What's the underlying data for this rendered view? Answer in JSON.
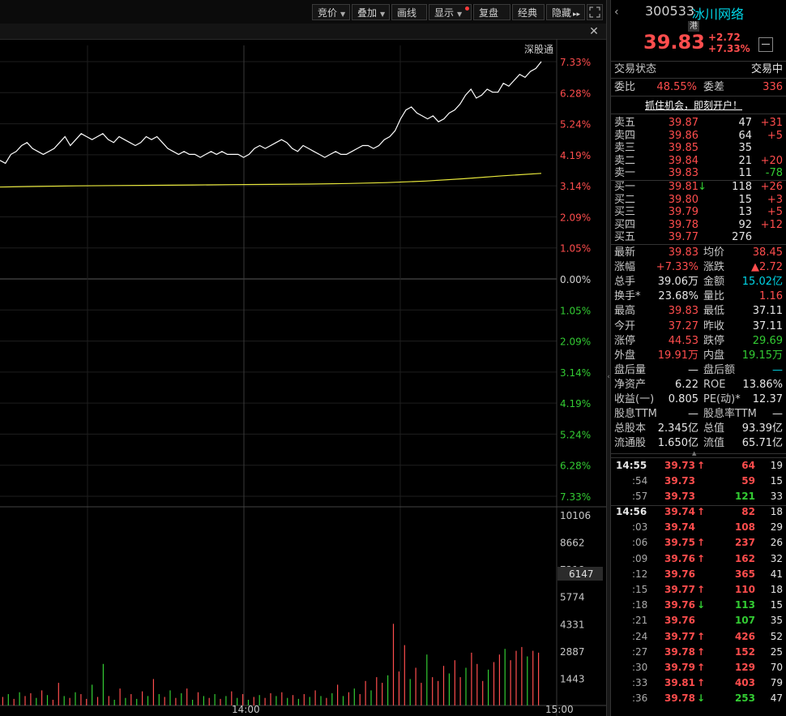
{
  "toolbar": {
    "buttons": [
      {
        "label": "竞价",
        "dropdown": true
      },
      {
        "label": "叠加",
        "dropdown": true
      },
      {
        "label": "画线",
        "dropdown": false
      },
      {
        "label": "显示",
        "dropdown": true
      },
      {
        "label": "复盘",
        "dropdown": false
      },
      {
        "label": "经典",
        "dropdown": false
      },
      {
        "label": "隐藏",
        "dropdown": false
      }
    ],
    "hide_arrows": "▸▸",
    "fullscreen_icon": "fullscreen-icon"
  },
  "chart_data": {
    "type": "line",
    "market_label": "深股通",
    "price_axis_labels": [
      "7.33%",
      "6.28%",
      "5.24%",
      "4.19%",
      "3.14%",
      "2.09%",
      "1.05%",
      "0.00%",
      "1.05%",
      "2.09%",
      "3.14%",
      "4.19%",
      "5.24%",
      "6.28%",
      "7.33%"
    ],
    "time_labels": [
      "14:00",
      "15:00"
    ],
    "volume_axis_labels": [
      "10106",
      "8662",
      "7218",
      "5774",
      "4331",
      "2887",
      "1443"
    ],
    "volume_marker": "6147",
    "price_series_pct": [
      4.0,
      3.9,
      4.2,
      4.3,
      4.5,
      4.6,
      4.4,
      4.3,
      4.2,
      4.3,
      4.4,
      4.6,
      4.8,
      4.5,
      4.7,
      4.9,
      4.8,
      4.7,
      4.8,
      4.9,
      4.7,
      4.6,
      4.8,
      4.7,
      4.6,
      4.5,
      4.6,
      4.8,
      4.7,
      4.8,
      4.6,
      4.4,
      4.3,
      4.2,
      4.3,
      4.2,
      4.2,
      4.1,
      4.2,
      4.3,
      4.2,
      4.3,
      4.2,
      4.2,
      4.2,
      4.1,
      4.2,
      4.4,
      4.5,
      4.4,
      4.5,
      4.6,
      4.7,
      4.6,
      4.4,
      4.3,
      4.5,
      4.4,
      4.3,
      4.2,
      4.1,
      4.2,
      4.3,
      4.2,
      4.2,
      4.3,
      4.4,
      4.5,
      4.5,
      4.4,
      4.5,
      4.7,
      4.8,
      5.0,
      5.4,
      5.7,
      5.8,
      5.6,
      5.5,
      5.4,
      5.5,
      5.3,
      5.4,
      5.6,
      5.7,
      5.9,
      6.2,
      6.4,
      6.1,
      6.2,
      6.4,
      6.3,
      6.3,
      6.6,
      6.5,
      6.7,
      6.9,
      6.8,
      7.0,
      7.1,
      7.33
    ],
    "avg_series_pct": [
      3.1,
      3.12,
      3.14,
      3.15,
      3.16,
      3.17,
      3.18,
      3.19,
      3.2,
      3.22,
      3.25,
      3.3,
      3.38,
      3.48,
      3.56
    ],
    "volume_bars": [
      {
        "v": 450,
        "c": "r"
      },
      {
        "v": 600,
        "c": "g"
      },
      {
        "v": 350,
        "c": "r"
      },
      {
        "v": 700,
        "c": "g"
      },
      {
        "v": 500,
        "c": "r"
      },
      {
        "v": 650,
        "c": "r"
      },
      {
        "v": 400,
        "c": "g"
      },
      {
        "v": 800,
        "c": "r"
      },
      {
        "v": 550,
        "c": "g"
      },
      {
        "v": 300,
        "c": "r"
      },
      {
        "v": 1200,
        "c": "r"
      },
      {
        "v": 500,
        "c": "g"
      },
      {
        "v": 400,
        "c": "r"
      },
      {
        "v": 700,
        "c": "g"
      },
      {
        "v": 600,
        "c": "r"
      },
      {
        "v": 350,
        "c": "r"
      },
      {
        "v": 1100,
        "c": "g"
      },
      {
        "v": 450,
        "c": "r"
      },
      {
        "v": 2200,
        "c": "g"
      },
      {
        "v": 500,
        "c": "r"
      },
      {
        "v": 300,
        "c": "g"
      },
      {
        "v": 900,
        "c": "r"
      },
      {
        "v": 400,
        "c": "g"
      },
      {
        "v": 600,
        "c": "r"
      },
      {
        "v": 350,
        "c": "g"
      },
      {
        "v": 750,
        "c": "r"
      },
      {
        "v": 500,
        "c": "g"
      },
      {
        "v": 1400,
        "c": "r"
      },
      {
        "v": 600,
        "c": "g"
      },
      {
        "v": 450,
        "c": "r"
      },
      {
        "v": 800,
        "c": "g"
      },
      {
        "v": 400,
        "c": "r"
      },
      {
        "v": 650,
        "c": "g"
      },
      {
        "v": 900,
        "c": "r"
      },
      {
        "v": 300,
        "c": "g"
      },
      {
        "v": 700,
        "c": "r"
      },
      {
        "v": 500,
        "c": "g"
      },
      {
        "v": 400,
        "c": "r"
      },
      {
        "v": 600,
        "c": "g"
      },
      {
        "v": 350,
        "c": "r"
      },
      {
        "v": 500,
        "c": "g"
      },
      {
        "v": 750,
        "c": "r"
      },
      {
        "v": 400,
        "c": "g"
      },
      {
        "v": 600,
        "c": "r"
      },
      {
        "v": 300,
        "c": "g"
      },
      {
        "v": 450,
        "c": "r"
      },
      {
        "v": 550,
        "c": "g"
      },
      {
        "v": 400,
        "c": "r"
      },
      {
        "v": 650,
        "c": "r"
      },
      {
        "v": 500,
        "c": "g"
      },
      {
        "v": 700,
        "c": "r"
      },
      {
        "v": 400,
        "c": "g"
      },
      {
        "v": 550,
        "c": "r"
      },
      {
        "v": 350,
        "c": "g"
      },
      {
        "v": 600,
        "c": "r"
      },
      {
        "v": 450,
        "c": "g"
      },
      {
        "v": 800,
        "c": "r"
      },
      {
        "v": 500,
        "c": "g"
      },
      {
        "v": 400,
        "c": "r"
      },
      {
        "v": 650,
        "c": "g"
      },
      {
        "v": 1100,
        "c": "r"
      },
      {
        "v": 500,
        "c": "g"
      },
      {
        "v": 700,
        "c": "r"
      },
      {
        "v": 900,
        "c": "g"
      },
      {
        "v": 600,
        "c": "r"
      },
      {
        "v": 1300,
        "c": "r"
      },
      {
        "v": 800,
        "c": "g"
      },
      {
        "v": 1500,
        "c": "r"
      },
      {
        "v": 1200,
        "c": "r"
      },
      {
        "v": 1600,
        "c": "g"
      },
      {
        "v": 4331,
        "c": "r"
      },
      {
        "v": 1800,
        "c": "r"
      },
      {
        "v": 3200,
        "c": "r"
      },
      {
        "v": 1400,
        "c": "g"
      },
      {
        "v": 2000,
        "c": "r"
      },
      {
        "v": 1200,
        "c": "r"
      },
      {
        "v": 2700,
        "c": "g"
      },
      {
        "v": 1500,
        "c": "r"
      },
      {
        "v": 1300,
        "c": "r"
      },
      {
        "v": 2100,
        "c": "r"
      },
      {
        "v": 1700,
        "c": "g"
      },
      {
        "v": 2400,
        "c": "r"
      },
      {
        "v": 1500,
        "c": "r"
      },
      {
        "v": 2000,
        "c": "g"
      },
      {
        "v": 2800,
        "c": "r"
      },
      {
        "v": 2200,
        "c": "r"
      },
      {
        "v": 1300,
        "c": "r"
      },
      {
        "v": 1900,
        "c": "g"
      },
      {
        "v": 2300,
        "c": "r"
      },
      {
        "v": 2700,
        "c": "r"
      },
      {
        "v": 3000,
        "c": "g"
      },
      {
        "v": 2400,
        "c": "r"
      },
      {
        "v": 2900,
        "c": "r"
      },
      {
        "v": 3100,
        "c": "r"
      },
      {
        "v": 2600,
        "c": "g"
      },
      {
        "v": 2900,
        "c": "r"
      },
      {
        "v": 2800,
        "c": "r"
      }
    ]
  },
  "stock": {
    "code": "300533",
    "name": "冰川网络",
    "badge": "港",
    "price": "39.83",
    "change": "+2.72",
    "change_pct": "+7.33%",
    "collapse_icon": "minus-icon"
  },
  "status": {
    "label": "交易状态",
    "value": "交易中"
  },
  "weibi": {
    "label": "委比",
    "value": "48.55%",
    "label2": "委差",
    "value2": "336"
  },
  "promo": "抓住机会，即刻开户！",
  "asks": [
    {
      "label": "卖五",
      "price": "39.87",
      "vol": "47",
      "chg": "+31"
    },
    {
      "label": "卖四",
      "price": "39.86",
      "vol": "64",
      "chg": "+5"
    },
    {
      "label": "卖三",
      "price": "39.85",
      "vol": "35",
      "chg": ""
    },
    {
      "label": "卖二",
      "price": "39.84",
      "vol": "21",
      "chg": "+20"
    },
    {
      "label": "卖一",
      "price": "39.83",
      "vol": "11",
      "chg": "-78"
    }
  ],
  "bids": [
    {
      "label": "买一",
      "price": "39.81",
      "arrow": "↓",
      "vol": "118",
      "chg": "+26"
    },
    {
      "label": "买二",
      "price": "39.80",
      "arrow": "",
      "vol": "15",
      "chg": "+3"
    },
    {
      "label": "买三",
      "price": "39.79",
      "arrow": "",
      "vol": "13",
      "chg": "+5"
    },
    {
      "label": "买四",
      "price": "39.78",
      "arrow": "",
      "vol": "92",
      "chg": "+12"
    },
    {
      "label": "买五",
      "price": "39.77",
      "arrow": "",
      "vol": "276",
      "chg": ""
    }
  ],
  "stats": [
    {
      "l1": "最新",
      "v1": "39.83",
      "c1": "red",
      "l2": "均价",
      "v2": "38.45",
      "c2": "red"
    },
    {
      "l1": "涨幅",
      "v1": "+7.33%",
      "c1": "red",
      "l2": "涨跌",
      "v2": "▲2.72",
      "c2": "red"
    },
    {
      "l1": "总手",
      "v1": "39.06万",
      "c1": "white",
      "l2": "金额",
      "v2": "15.02亿",
      "c2": "cyan"
    },
    {
      "l1": "换手*",
      "v1": "23.68%",
      "c1": "white",
      "l2": "量比",
      "v2": "1.16",
      "c2": "red"
    },
    {
      "l1": "最高",
      "v1": "39.83",
      "c1": "red",
      "l2": "最低",
      "v2": "37.11",
      "c2": "white"
    },
    {
      "l1": "今开",
      "v1": "37.27",
      "c1": "red",
      "l2": "昨收",
      "v2": "37.11",
      "c2": "white"
    },
    {
      "l1": "涨停",
      "v1": "44.53",
      "c1": "red",
      "l2": "跌停",
      "v2": "29.69",
      "c2": "green"
    },
    {
      "l1": "外盘",
      "v1": "19.91万",
      "c1": "red",
      "l2": "内盘",
      "v2": "19.15万",
      "c2": "green"
    },
    {
      "l1": "盘后量",
      "v1": "—",
      "c1": "white",
      "l2": "盘后额",
      "v2": "—",
      "c2": "cyan"
    },
    {
      "l1": "净资产",
      "v1": "6.22",
      "c1": "white",
      "l2": "ROE",
      "v2": "13.86%",
      "c2": "white"
    },
    {
      "l1": "收益(一)",
      "v1": "0.805",
      "c1": "white",
      "l2": "PE(动)*",
      "v2": "12.37",
      "c2": "white"
    },
    {
      "l1": "股息TTM",
      "v1": "—",
      "c1": "white",
      "l2": "股息率TTM",
      "v2": "—",
      "c2": "white"
    },
    {
      "l1": "总股本",
      "v1": "2.345亿",
      "c1": "white",
      "l2": "总值",
      "v2": "93.39亿",
      "c2": "white"
    },
    {
      "l1": "流通股",
      "v1": "1.650亿",
      "c1": "white",
      "l2": "流值",
      "v2": "65.71亿",
      "c2": "white"
    }
  ],
  "ticks_a": [
    {
      "t": "14:55",
      "p": "39.73",
      "a": "↑",
      "ac": "red",
      "v": "64",
      "vc": "red",
      "n": "19"
    },
    {
      "t": ":54",
      "p": "39.73",
      "a": "",
      "ac": "red",
      "v": "59",
      "vc": "red",
      "n": "15"
    },
    {
      "t": ":57",
      "p": "39.73",
      "a": "",
      "ac": "red",
      "v": "121",
      "vc": "green",
      "n": "33"
    }
  ],
  "ticks_b": [
    {
      "t": "14:56",
      "p": "39.74",
      "a": "↑",
      "ac": "red",
      "v": "82",
      "vc": "red",
      "n": "18"
    },
    {
      "t": ":03",
      "p": "39.74",
      "a": "",
      "ac": "red",
      "v": "108",
      "vc": "red",
      "n": "29"
    },
    {
      "t": ":06",
      "p": "39.75",
      "a": "↑",
      "ac": "red",
      "v": "237",
      "vc": "red",
      "n": "26"
    },
    {
      "t": ":09",
      "p": "39.76",
      "a": "↑",
      "ac": "red",
      "v": "162",
      "vc": "red",
      "n": "32"
    },
    {
      "t": ":12",
      "p": "39.76",
      "a": "",
      "ac": "red",
      "v": "365",
      "vc": "red",
      "n": "41"
    },
    {
      "t": ":15",
      "p": "39.77",
      "a": "↑",
      "ac": "red",
      "v": "110",
      "vc": "red",
      "n": "18"
    },
    {
      "t": ":18",
      "p": "39.76",
      "a": "↓",
      "ac": "green",
      "v": "113",
      "vc": "green",
      "n": "15"
    },
    {
      "t": ":21",
      "p": "39.76",
      "a": "",
      "ac": "red",
      "v": "107",
      "vc": "green",
      "n": "35"
    },
    {
      "t": ":24",
      "p": "39.77",
      "a": "↑",
      "ac": "red",
      "v": "426",
      "vc": "red",
      "n": "52"
    },
    {
      "t": ":27",
      "p": "39.78",
      "a": "↑",
      "ac": "red",
      "v": "152",
      "vc": "red",
      "n": "25"
    },
    {
      "t": ":30",
      "p": "39.79",
      "a": "↑",
      "ac": "red",
      "v": "129",
      "vc": "red",
      "n": "70"
    },
    {
      "t": ":33",
      "p": "39.81",
      "a": "↑",
      "ac": "red",
      "v": "403",
      "vc": "red",
      "n": "79"
    },
    {
      "t": ":36",
      "p": "39.78",
      "a": "↓",
      "ac": "green",
      "v": "253",
      "vc": "green",
      "n": "47"
    }
  ]
}
